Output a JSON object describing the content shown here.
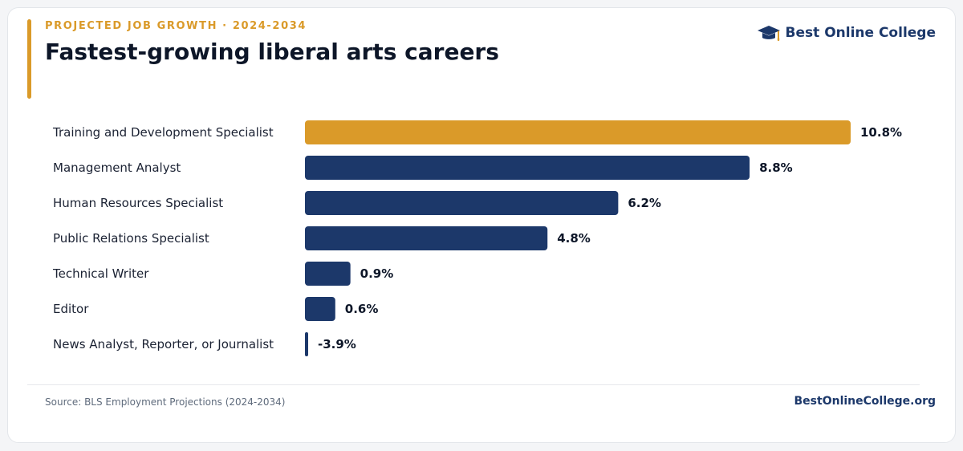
{
  "header": {
    "eyebrow": "PROJECTED JOB GROWTH · 2024-2034",
    "title": "Fastest-growing liberal arts careers"
  },
  "brand": {
    "name": "Best Online College",
    "icon": "graduation-cap-icon"
  },
  "footer": {
    "source": "Source: BLS Employment Projections (2024-2034)",
    "site": "BestOnlineCollege.org"
  },
  "colors": {
    "highlight": "#DA9A29",
    "primary": "#1C386A",
    "label_text": "#1b2233",
    "value_text": "#0d1628"
  },
  "chart_data": {
    "type": "bar",
    "orientation": "horizontal",
    "categories": [
      "Training and Development Specialist",
      "Management Analyst",
      "Human Resources Specialist",
      "Public Relations Specialist",
      "Technical Writer",
      "Editor",
      "News Analyst, Reporter, or Journalist"
    ],
    "values": [
      10.8,
      8.8,
      6.2,
      4.8,
      0.9,
      0.6,
      -3.9
    ],
    "value_labels": [
      "10.8%",
      "8.8%",
      "6.2%",
      "4.8%",
      "0.9%",
      "0.6%",
      "-3.9%"
    ],
    "highlight_index": 0,
    "title": "Fastest-growing liberal arts careers",
    "xlabel": "",
    "ylabel": "",
    "grid": false,
    "legend": "none"
  }
}
